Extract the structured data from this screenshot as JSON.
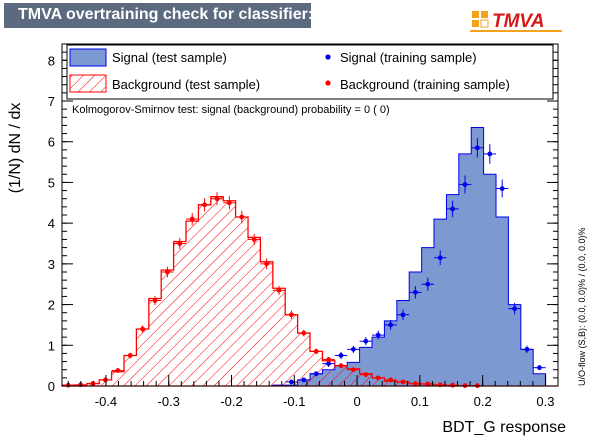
{
  "header": {
    "title": "TMVA overtraining check for classifier: BDT_G",
    "logo_text": "TMVA"
  },
  "colors": {
    "signal_fill": "#7d99d1",
    "signal_line": "#0000ee",
    "background_hatch": "#ff0000",
    "title_bg": "#5b6a7e"
  },
  "legend": {
    "signal_test": "Signal (test sample)",
    "background_test": "Background (test sample)",
    "signal_train": "Signal (training sample)",
    "background_train": "Background (training sample)"
  },
  "ks_text": "Kolmogorov-Smirnov test: signal (background) probability =      0 (    0)",
  "uo_text": "U/O-flow (S,B): (0.0, 0.0)% / (0.0, 0.0)%",
  "chart_data": {
    "type": "histogram",
    "xlabel": "BDT_G response",
    "ylabel": "(1/N) dN / dx",
    "xlim": [
      -0.47,
      0.32
    ],
    "ylim": [
      0,
      8.4
    ],
    "x_ticks": [
      -0.4,
      -0.3,
      -0.2,
      -0.1,
      0,
      0.1,
      0.2,
      0.3
    ],
    "x_tick_labels": [
      "-0.4",
      "-0.3",
      "-0.2",
      "-0.1",
      "0",
      "0.1",
      "0.2",
      "0.3"
    ],
    "y_ticks": [
      0,
      1,
      2,
      3,
      4,
      5,
      6,
      7,
      8
    ],
    "y_tick_labels": [
      "0",
      "1",
      "2",
      "3",
      "4",
      "5",
      "6",
      "7",
      "8"
    ],
    "bin_edges": [
      -0.47,
      -0.4502,
      -0.4305,
      -0.4107,
      -0.391,
      -0.3712,
      -0.3515,
      -0.3317,
      -0.312,
      -0.2922,
      -0.2725,
      -0.2527,
      -0.233,
      -0.2132,
      -0.1935,
      -0.1737,
      -0.154,
      -0.1342,
      -0.1145,
      -0.0947,
      -0.075,
      -0.0552,
      -0.0355,
      -0.0157,
      0.004,
      0.0238,
      0.0435,
      0.0633,
      0.083,
      0.1028,
      0.1225,
      0.1423,
      0.162,
      0.1818,
      0.2015,
      0.2213,
      0.241,
      0.2608,
      0.2805,
      0.3003,
      0.32
    ],
    "series": [
      {
        "name": "Signal (test sample)",
        "style": "filled",
        "values": [
          0,
          0,
          0,
          0,
          0,
          0,
          0,
          0,
          0,
          0,
          0,
          0,
          0,
          0,
          0,
          0,
          0,
          0.02,
          0.02,
          0.15,
          0.3,
          0.4,
          0.5,
          0.58,
          0.95,
          1.2,
          1.6,
          2.1,
          2.8,
          3.4,
          4.1,
          4.7,
          5.7,
          6.35,
          5.2,
          4.15,
          2.0,
          0.9,
          0.3,
          0
        ]
      },
      {
        "name": "Background (test sample)",
        "style": "hatched",
        "values": [
          0.02,
          0.02,
          0.06,
          0.15,
          0.35,
          0.75,
          1.4,
          2.15,
          2.85,
          3.55,
          4.05,
          4.45,
          4.65,
          4.55,
          4.15,
          3.65,
          3.05,
          2.4,
          1.75,
          1.3,
          0.85,
          0.62,
          0.5,
          0.42,
          0.3,
          0.2,
          0.12,
          0.1,
          0.06,
          0.05,
          0.02,
          0.01,
          0,
          0,
          0,
          0,
          0,
          0,
          0,
          0
        ]
      },
      {
        "name": "Signal (training sample)",
        "style": "points",
        "x": [
          -0.1046,
          -0.0849,
          -0.0651,
          -0.0454,
          -0.0256,
          -0.0059,
          0.0139,
          0.0336,
          0.0534,
          0.0731,
          0.0929,
          0.1126,
          0.1324,
          0.1521,
          0.1719,
          0.1916,
          0.2114,
          0.2311,
          0.2509,
          0.2706,
          0.2904
        ],
        "values": [
          0.1,
          0.15,
          0.3,
          0.55,
          0.75,
          0.9,
          1.1,
          1.25,
          1.5,
          1.75,
          2.3,
          2.5,
          3.15,
          4.35,
          4.95,
          5.85,
          5.7,
          4.85,
          1.9,
          0.9,
          0.45
        ],
        "errors": [
          0.04,
          0.05,
          0.06,
          0.08,
          0.09,
          0.09,
          0.1,
          0.11,
          0.12,
          0.13,
          0.15,
          0.16,
          0.18,
          0.2,
          0.22,
          0.24,
          0.24,
          0.22,
          0.14,
          0.09,
          0.06
        ]
      },
      {
        "name": "Background (training sample)",
        "style": "points",
        "x": [
          -0.4601,
          -0.4404,
          -0.4206,
          -0.4009,
          -0.3811,
          -0.3614,
          -0.3416,
          -0.3219,
          -0.3021,
          -0.2824,
          -0.2626,
          -0.2429,
          -0.2231,
          -0.2034,
          -0.1836,
          -0.1639,
          -0.1441,
          -0.1244,
          -0.1046,
          -0.0849,
          -0.0651,
          -0.0454,
          -0.0256,
          -0.0059,
          0.0139,
          0.0336,
          0.0534,
          0.0731,
          0.0929,
          0.1126,
          0.1324,
          0.1521,
          0.1719,
          0.1916
        ],
        "values": [
          0.02,
          0.03,
          0.06,
          0.15,
          0.38,
          0.75,
          1.4,
          2.1,
          2.8,
          3.5,
          4.1,
          4.45,
          4.6,
          4.5,
          4.15,
          3.6,
          3.0,
          2.35,
          1.75,
          1.3,
          0.85,
          0.65,
          0.5,
          0.4,
          0.28,
          0.2,
          0.15,
          0.1,
          0.06,
          0.05,
          0.03,
          0.02,
          0.01,
          0.01
        ],
        "errors": [
          0.01,
          0.01,
          0.02,
          0.03,
          0.05,
          0.07,
          0.09,
          0.11,
          0.13,
          0.14,
          0.15,
          0.16,
          0.16,
          0.16,
          0.15,
          0.14,
          0.13,
          0.11,
          0.1,
          0.08,
          0.07,
          0.06,
          0.05,
          0.05,
          0.04,
          0.03,
          0.03,
          0.02,
          0.02,
          0.02,
          0.01,
          0.01,
          0.01,
          0.01
        ]
      }
    ],
    "grid": false,
    "legend_position": "top"
  }
}
